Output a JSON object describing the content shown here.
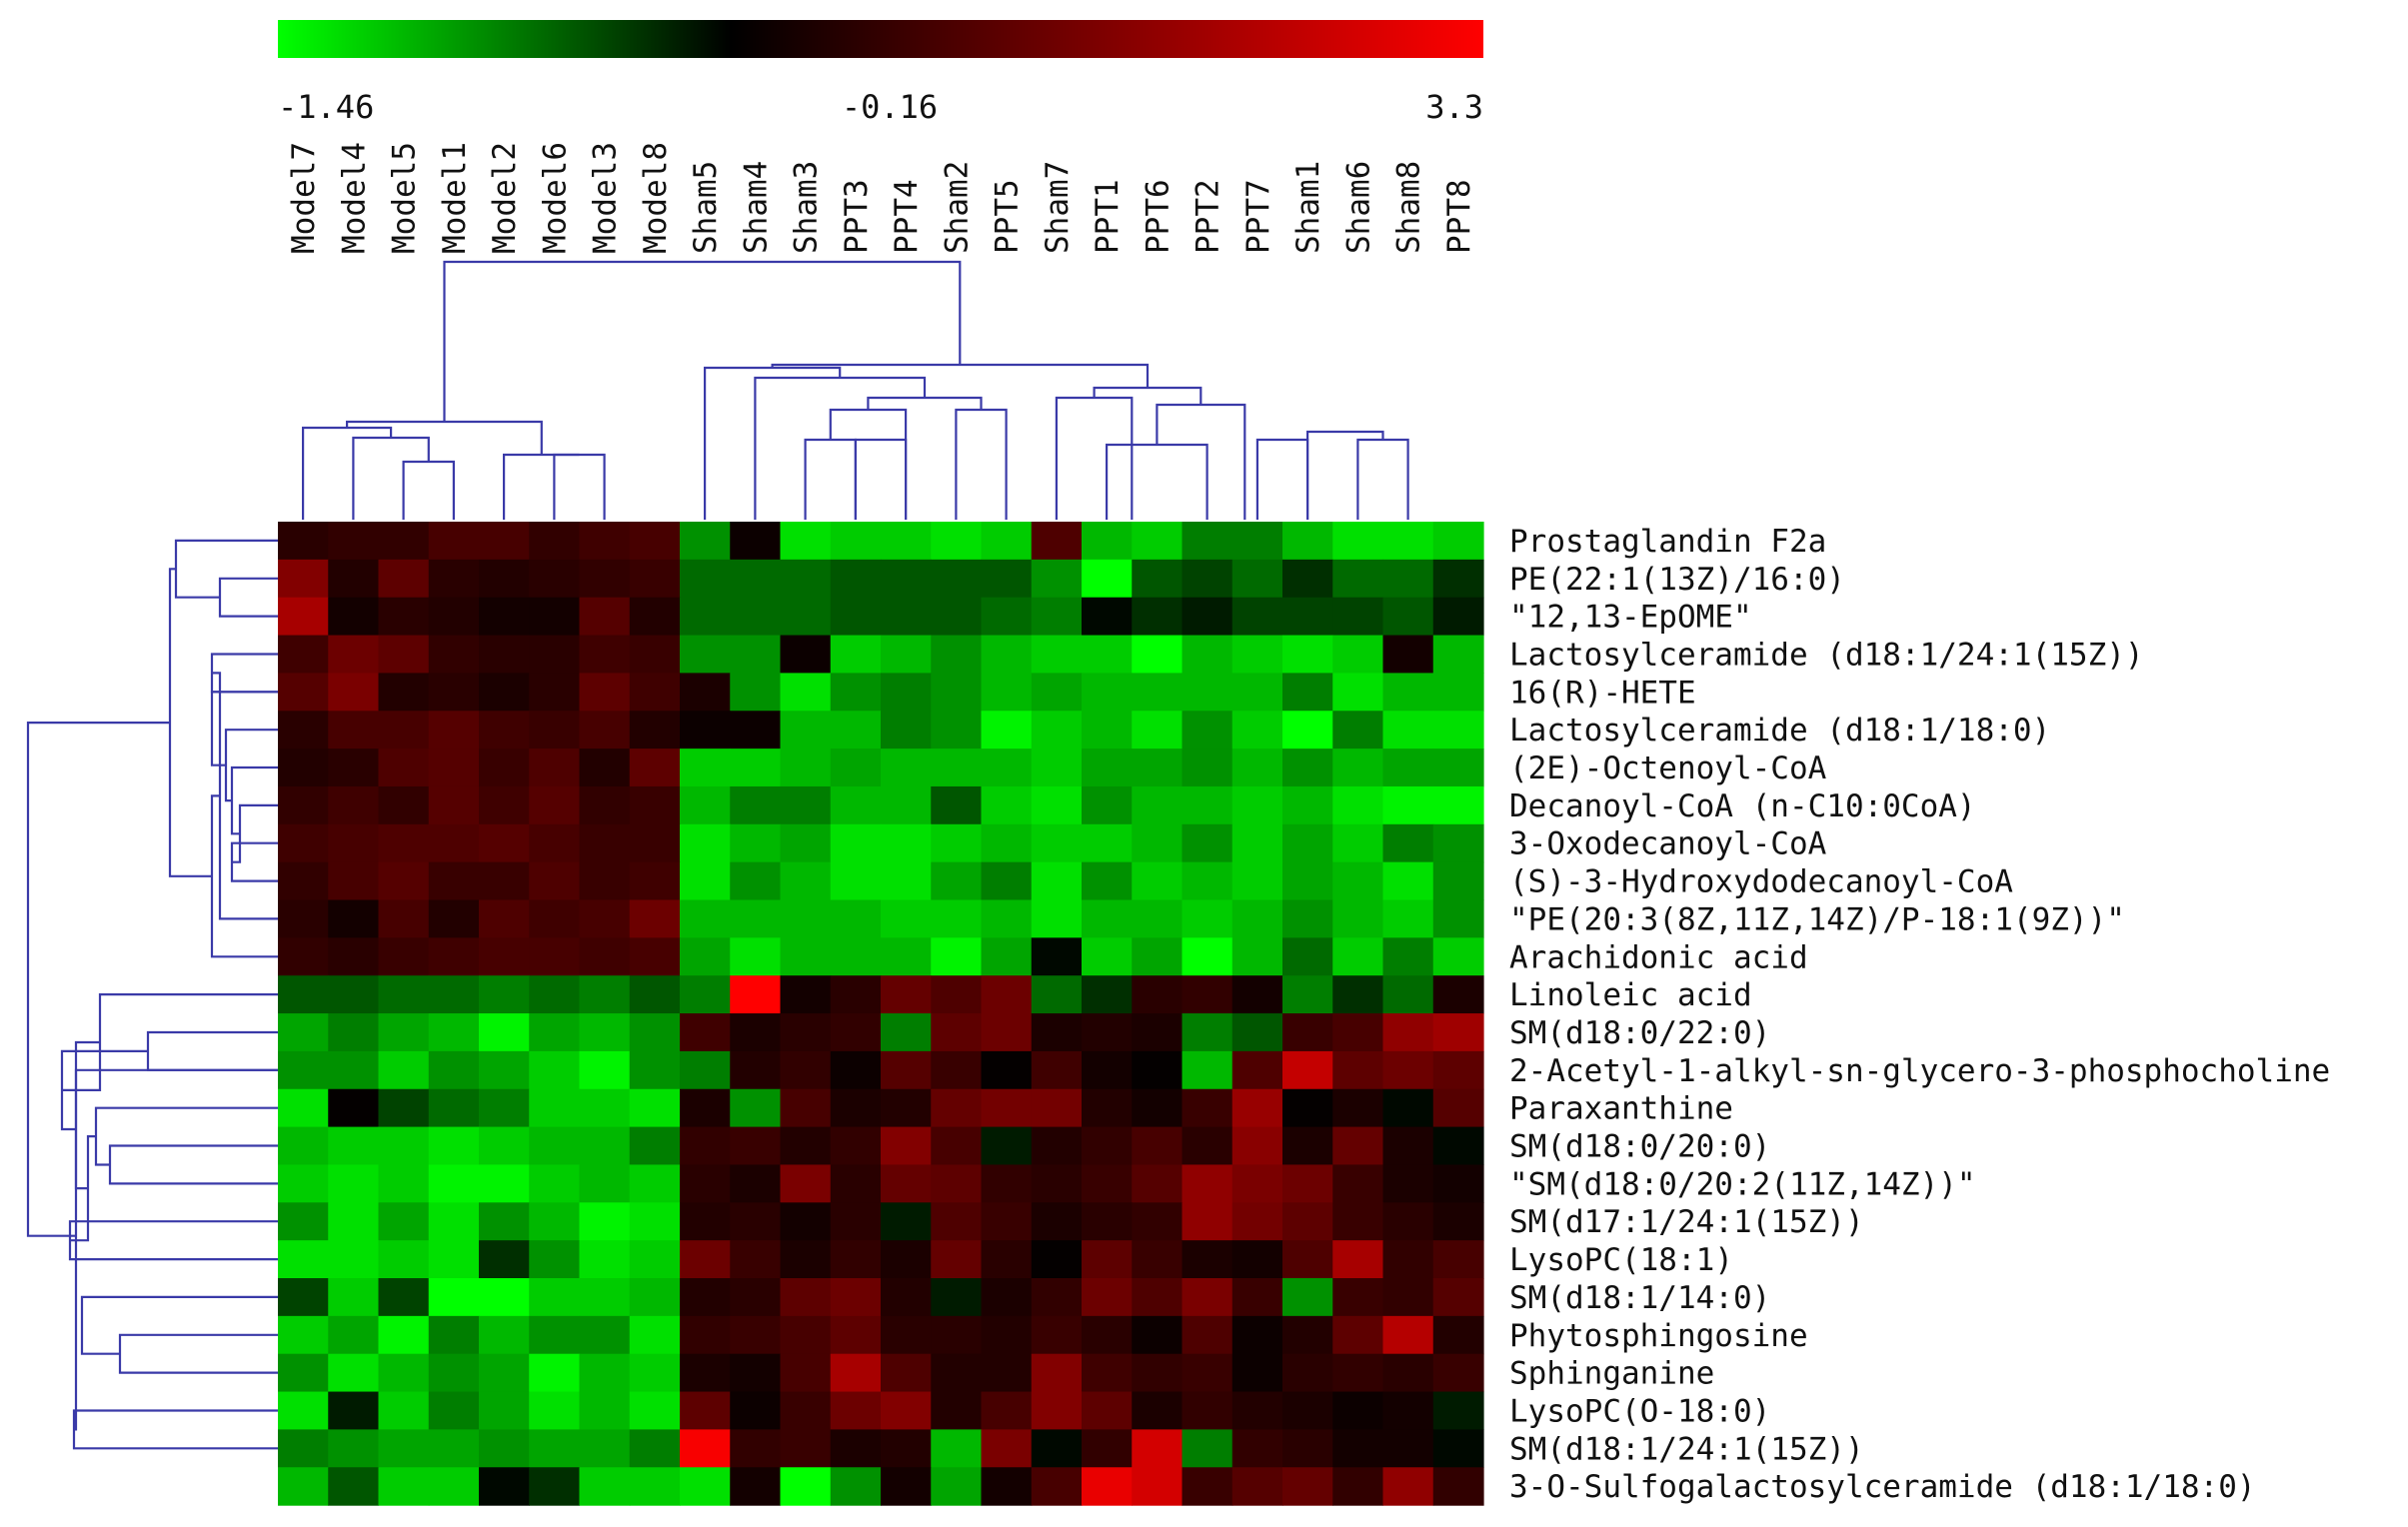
{
  "chart_data": {
    "type": "heatmap",
    "color_scale": {
      "min": -1.46,
      "mid": -0.16,
      "max": 3.3,
      "low_color": "#00ff00",
      "mid_color": "#000000",
      "high_color": "#ff0000",
      "tick_labels": [
        "-1.46",
        "-0.16",
        "3.3"
      ]
    },
    "columns": [
      "Model7",
      "Model4",
      "Model5",
      "Model1",
      "Model2",
      "Model6",
      "Model3",
      "Model8",
      "Sham5",
      "Sham4",
      "Sham3",
      "PPT3",
      "PPT4",
      "Sham2",
      "PPT5",
      "Sham7",
      "PPT1",
      "PPT6",
      "PPT2",
      "PPT7",
      "Sham1",
      "Sham6",
      "Sham8",
      "PPT8"
    ],
    "rows": [
      "Prostaglandin F2a",
      "PE(22:1(13Z)/16:0)",
      "\"12,13-EpOME\"",
      "Lactosylceramide (d18:1/24:1(15Z))",
      "16(R)-HETE",
      "Lactosylceramide (d18:1/18:0)",
      "(2E)-Octenoyl-CoA",
      "Decanoyl-CoA (n-C10:0CoA)",
      "3-Oxodecanoyl-CoA",
      "(S)-3-Hydroxydodecanoyl-CoA",
      "\"PE(20:3(8Z,11Z,14Z)/P-18:1(9Z))\"",
      "Arachidonic acid",
      "Linoleic acid",
      "SM(d18:0/22:0)",
      "2-Acetyl-1-alkyl-sn-glycero-3-phosphocholine",
      "Paraxanthine",
      "SM(d18:0/20:0)",
      "\"SM(d18:0/20:2(11Z,14Z))\"",
      "SM(d17:1/24:1(15Z))",
      "LysoPC(18:1)",
      "SM(d18:1/14:0)",
      "Phytosphingosine",
      "Sphinganine",
      "LysoPC(O-18:0)",
      "SM(d18:1/24:1(15Z))",
      "3-O-Sulfogalactosylceramide (d18:1/18:0)"
    ],
    "values": [
      [
        0.4,
        0.5,
        0.5,
        0.8,
        0.8,
        0.5,
        0.7,
        0.8,
        -0.9,
        0.0,
        -1.3,
        -1.2,
        -1.2,
        -1.3,
        -1.2,
        0.9,
        -1.1,
        -1.2,
        -0.8,
        -0.8,
        -1.1,
        -1.3,
        -1.3,
        -1.2
      ],
      [
        1.6,
        0.3,
        1.1,
        0.4,
        0.3,
        0.4,
        0.5,
        0.6,
        -0.7,
        -0.7,
        -0.7,
        -0.6,
        -0.6,
        -0.6,
        -0.6,
        -0.9,
        -1.5,
        -0.6,
        -0.5,
        -0.7,
        -0.4,
        -0.7,
        -0.7,
        -0.4
      ],
      [
        2.1,
        0.1,
        0.4,
        0.3,
        0.1,
        0.1,
        1.0,
        0.3,
        -0.7,
        -0.7,
        -0.7,
        -0.6,
        -0.6,
        -0.6,
        -0.7,
        -0.8,
        -0.2,
        -0.4,
        -0.3,
        -0.5,
        -0.5,
        -0.5,
        -0.6,
        -0.3
      ],
      [
        0.7,
        1.3,
        1.1,
        0.5,
        0.4,
        0.4,
        0.7,
        0.6,
        -0.9,
        -0.9,
        0.0,
        -1.2,
        -1.1,
        -0.9,
        -1.1,
        -1.2,
        -1.2,
        -1.5,
        -1.1,
        -1.2,
        -1.3,
        -1.2,
        0.1,
        -1.1
      ],
      [
        1.0,
        1.5,
        0.3,
        0.4,
        0.2,
        0.4,
        1.1,
        0.7,
        0.2,
        -0.9,
        -1.3,
        -0.9,
        -0.8,
        -0.9,
        -1.1,
        -1.0,
        -1.1,
        -1.1,
        -1.1,
        -1.1,
        -0.8,
        -1.3,
        -1.1,
        -1.1
      ],
      [
        0.4,
        0.8,
        0.8,
        1.0,
        0.7,
        0.6,
        0.8,
        0.3,
        0.0,
        0.0,
        -1.1,
        -1.1,
        -0.8,
        -0.9,
        -1.4,
        -1.2,
        -1.1,
        -1.3,
        -0.9,
        -1.2,
        -1.5,
        -0.8,
        -1.3,
        -1.3
      ],
      [
        0.3,
        0.4,
        0.9,
        1.0,
        0.6,
        0.9,
        0.3,
        1.1,
        -1.2,
        -1.2,
        -1.1,
        -1.0,
        -1.1,
        -1.1,
        -1.1,
        -1.2,
        -1.0,
        -1.0,
        -0.9,
        -1.1,
        -0.9,
        -1.1,
        -1.0,
        -1.0
      ],
      [
        0.5,
        0.7,
        0.5,
        1.0,
        0.7,
        1.0,
        0.5,
        0.6,
        -1.1,
        -0.8,
        -0.8,
        -1.1,
        -1.1,
        -0.6,
        -1.2,
        -1.3,
        -0.9,
        -1.1,
        -1.1,
        -1.2,
        -1.1,
        -1.3,
        -1.4,
        -1.4
      ],
      [
        0.7,
        0.8,
        0.9,
        0.9,
        1.0,
        0.8,
        0.6,
        0.6,
        -1.3,
        -1.1,
        -1.0,
        -1.3,
        -1.3,
        -1.2,
        -1.1,
        -1.2,
        -1.2,
        -1.1,
        -0.9,
        -1.2,
        -1.0,
        -1.2,
        -0.8,
        -0.9
      ],
      [
        0.5,
        0.8,
        1.0,
        0.6,
        0.6,
        0.9,
        0.6,
        0.7,
        -1.3,
        -0.9,
        -1.1,
        -1.3,
        -1.3,
        -1.0,
        -0.8,
        -1.3,
        -0.9,
        -1.2,
        -1.1,
        -1.2,
        -1.0,
        -1.1,
        -1.3,
        -0.9
      ],
      [
        0.4,
        0.1,
        0.8,
        0.3,
        0.9,
        0.7,
        0.8,
        1.3,
        -1.1,
        -1.1,
        -1.1,
        -1.1,
        -1.2,
        -1.2,
        -1.1,
        -1.3,
        -1.1,
        -1.1,
        -1.2,
        -1.1,
        -0.9,
        -1.1,
        -1.2,
        -0.9
      ],
      [
        0.5,
        0.4,
        0.6,
        0.7,
        0.8,
        0.8,
        0.7,
        0.8,
        -1.0,
        -1.3,
        -1.1,
        -1.1,
        -1.1,
        -1.4,
        -1.0,
        -0.2,
        -1.2,
        -1.0,
        -1.5,
        -1.1,
        -0.7,
        -1.2,
        -0.8,
        -1.2
      ],
      [
        -0.6,
        -0.6,
        -0.7,
        -0.7,
        -0.8,
        -0.7,
        -0.8,
        -0.6,
        -0.8,
        3.3,
        0.1,
        0.4,
        1.2,
        0.9,
        1.3,
        -0.7,
        -0.4,
        0.4,
        0.5,
        0.1,
        -0.8,
        -0.4,
        -0.7,
        0.2
      ],
      [
        -1.0,
        -0.8,
        -1.0,
        -1.1,
        -1.4,
        -1.0,
        -1.1,
        -0.9,
        0.7,
        0.2,
        0.4,
        0.5,
        -0.8,
        1.1,
        1.3,
        0.2,
        0.3,
        0.2,
        -0.8,
        -0.6,
        0.6,
        0.8,
        1.8,
        2.0
      ],
      [
        -0.9,
        -0.9,
        -1.2,
        -0.9,
        -1.0,
        -1.2,
        -1.4,
        -0.9,
        -0.8,
        0.3,
        0.5,
        0.0,
        1.0,
        0.6,
        -0.1,
        0.7,
        0.1,
        -0.1,
        -1.1,
        0.9,
        2.5,
        1.1,
        1.3,
        1.1
      ],
      [
        -1.3,
        -0.1,
        -0.5,
        -0.7,
        -0.8,
        -1.2,
        -1.2,
        -1.3,
        0.2,
        -0.9,
        0.8,
        0.2,
        0.3,
        1.2,
        1.4,
        1.4,
        0.3,
        0.1,
        0.6,
        1.9,
        -0.1,
        0.2,
        -0.2,
        1.0
      ],
      [
        -1.1,
        -1.2,
        -1.2,
        -1.3,
        -1.2,
        -1.1,
        -1.1,
        -0.8,
        0.5,
        0.6,
        0.3,
        0.5,
        1.6,
        0.8,
        -0.3,
        0.3,
        0.5,
        0.8,
        0.4,
        1.7,
        0.2,
        1.2,
        0.2,
        -0.2
      ],
      [
        -1.2,
        -1.3,
        -1.2,
        -1.4,
        -1.4,
        -1.2,
        -1.1,
        -1.2,
        0.4,
        0.2,
        1.5,
        0.4,
        1.2,
        1.1,
        0.5,
        0.4,
        0.6,
        1.0,
        1.8,
        1.5,
        1.3,
        0.6,
        0.2,
        0.1
      ],
      [
        -0.9,
        -1.3,
        -1.0,
        -1.3,
        -0.9,
        -1.1,
        -1.4,
        -1.3,
        0.3,
        0.4,
        0.1,
        0.4,
        -0.3,
        0.9,
        0.6,
        0.2,
        0.4,
        0.5,
        1.8,
        1.4,
        1.1,
        0.6,
        0.4,
        0.2
      ],
      [
        -1.3,
        -1.3,
        -1.2,
        -1.3,
        -0.4,
        -0.9,
        -1.3,
        -1.2,
        1.3,
        0.6,
        0.2,
        0.5,
        0.2,
        1.2,
        0.4,
        -0.1,
        1.1,
        0.6,
        0.2,
        0.1,
        0.9,
        2.1,
        0.5,
        0.8
      ],
      [
        -0.5,
        -1.2,
        -0.5,
        -1.5,
        -1.5,
        -1.2,
        -1.2,
        -1.1,
        0.3,
        0.4,
        1.1,
        1.3,
        0.3,
        -0.3,
        0.2,
        0.5,
        1.3,
        0.9,
        1.5,
        0.6,
        -0.9,
        0.6,
        0.5,
        1.0
      ],
      [
        -1.2,
        -1.0,
        -1.4,
        -0.8,
        -1.1,
        -0.9,
        -0.9,
        -1.3,
        0.5,
        0.6,
        0.8,
        1.1,
        0.4,
        0.4,
        0.3,
        0.6,
        0.4,
        0.0,
        0.9,
        0.0,
        0.3,
        1.1,
        2.3,
        0.3
      ],
      [
        -0.9,
        -1.3,
        -1.1,
        -0.9,
        -1.0,
        -1.4,
        -1.1,
        -1.2,
        0.2,
        0.1,
        0.8,
        2.1,
        0.9,
        0.3,
        0.3,
        1.6,
        0.7,
        0.5,
        0.6,
        0.0,
        0.4,
        0.5,
        0.4,
        0.6
      ],
      [
        -1.3,
        -0.3,
        -1.2,
        -0.8,
        -1.0,
        -1.3,
        -1.1,
        -1.3,
        1.1,
        0.0,
        0.6,
        1.3,
        1.6,
        0.3,
        0.8,
        1.6,
        1.1,
        0.2,
        0.5,
        0.3,
        0.2,
        0.0,
        0.1,
        -0.3
      ],
      [
        -0.8,
        -0.9,
        -1.0,
        -1.0,
        -0.9,
        -1.0,
        -1.0,
        -0.8,
        3.2,
        0.5,
        0.6,
        0.2,
        0.3,
        -1.1,
        1.5,
        -0.2,
        0.5,
        2.7,
        -0.8,
        0.5,
        0.4,
        0.1,
        0.1,
        -0.2
      ],
      [
        -1.1,
        -0.6,
        -1.2,
        -1.2,
        -0.2,
        -0.4,
        -1.2,
        -1.2,
        -1.3,
        0.1,
        -1.5,
        -0.9,
        0.1,
        -1.0,
        0.1,
        0.8,
        3.0,
        2.7,
        0.6,
        1.0,
        1.2,
        0.5,
        1.8,
        0.5
      ]
    ],
    "row_dendrogram": true,
    "column_dendrogram": true
  }
}
